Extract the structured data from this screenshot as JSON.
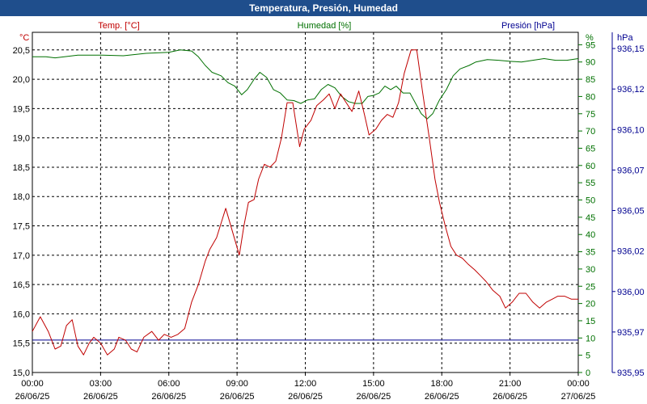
{
  "window": {
    "title": "Temperatura, Presión, Humedad"
  },
  "chart_data": {
    "type": "line",
    "title": "Temperatura, Presión, Humedad",
    "x_tick_labels": [
      [
        "00:00",
        "26/06/25"
      ],
      [
        "03:00",
        "26/06/25"
      ],
      [
        "06:00",
        "26/06/25"
      ],
      [
        "09:00",
        "26/06/25"
      ],
      [
        "12:00",
        "26/06/25"
      ],
      [
        "15:00",
        "26/06/25"
      ],
      [
        "18:00",
        "26/06/25"
      ],
      [
        "21:00",
        "26/06/25"
      ],
      [
        "00:00",
        "27/06/25"
      ]
    ],
    "x_range_hours": [
      0,
      24
    ],
    "grid": true,
    "axes": {
      "temp": {
        "label": "Temp. [°C]",
        "unit": "°C",
        "color": "#c00000",
        "side": "left",
        "range": [
          15.0,
          20.8
        ],
        "ticks": [
          "15,0",
          "15,5",
          "16,0",
          "16,5",
          "17,0",
          "17,5",
          "18,0",
          "18,5",
          "19,0",
          "19,5",
          "20,0",
          "20,5"
        ],
        "tick_values": [
          15.0,
          15.5,
          16.0,
          16.5,
          17.0,
          17.5,
          18.0,
          18.5,
          19.0,
          19.5,
          20.0,
          20.5
        ]
      },
      "hum": {
        "label": "Humedad [%]",
        "unit": "%",
        "color": "#007000",
        "side": "right",
        "range": [
          0,
          98.6
        ],
        "ticks": [
          "0",
          "5",
          "10",
          "15",
          "20",
          "25",
          "30",
          "35",
          "40",
          "45",
          "50",
          "55",
          "60",
          "65",
          "70",
          "75",
          "80",
          "85",
          "90",
          "95"
        ],
        "tick_values": [
          0,
          5,
          10,
          15,
          20,
          25,
          30,
          35,
          40,
          45,
          50,
          55,
          60,
          65,
          70,
          75,
          80,
          85,
          90,
          95
        ]
      },
      "pres": {
        "label": "Presión [hPa]",
        "unit": "hPa",
        "color": "#000090",
        "side": "far-right",
        "range": [
          935.95,
          936.16
        ],
        "ticks": [
          "935,95",
          "935,97",
          "936,00",
          "936,02",
          "936,05",
          "936,07",
          "936,10",
          "936,12",
          "936,15"
        ],
        "tick_values": [
          935.95,
          935.975,
          936.0,
          936.025,
          936.05,
          936.075,
          936.1,
          936.125,
          936.15
        ]
      }
    },
    "series": [
      {
        "name": "Temp. [°C]",
        "axis": "temp",
        "color": "#c00000",
        "x": [
          0,
          0.35,
          0.7,
          1.0,
          1.25,
          1.5,
          1.75,
          2.0,
          2.25,
          2.5,
          2.7,
          3.0,
          3.3,
          3.6,
          3.8,
          4.1,
          4.35,
          4.6,
          4.9,
          5.25,
          5.55,
          5.8,
          6.1,
          6.4,
          6.7,
          7.0,
          7.3,
          7.6,
          7.8,
          8.1,
          8.5,
          8.8,
          9.1,
          9.3,
          9.5,
          9.75,
          9.95,
          10.2,
          10.45,
          10.7,
          10.95,
          11.2,
          11.45,
          11.75,
          11.95,
          12.25,
          12.5,
          12.8,
          13.05,
          13.3,
          13.55,
          13.8,
          14.05,
          14.35,
          14.6,
          14.8,
          15.1,
          15.35,
          15.6,
          15.85,
          16.1,
          16.35,
          16.65,
          16.9,
          17.15,
          17.45,
          17.7,
          17.9,
          18.15,
          18.4,
          18.65,
          18.9,
          19.15,
          19.45,
          19.7,
          19.95,
          20.25,
          20.55,
          20.8,
          21.1,
          21.4,
          21.7,
          22.0,
          22.3,
          22.6,
          22.85,
          23.1,
          23.4,
          23.7,
          24.0
        ],
        "y": [
          15.7,
          15.95,
          15.7,
          15.4,
          15.45,
          15.8,
          15.9,
          15.45,
          15.3,
          15.5,
          15.6,
          15.5,
          15.3,
          15.4,
          15.6,
          15.55,
          15.4,
          15.35,
          15.6,
          15.7,
          15.55,
          15.65,
          15.6,
          15.65,
          15.75,
          16.2,
          16.5,
          16.9,
          17.1,
          17.3,
          17.8,
          17.4,
          17.0,
          17.5,
          17.9,
          17.95,
          18.3,
          18.55,
          18.5,
          18.6,
          19.0,
          19.6,
          19.6,
          18.85,
          19.15,
          19.3,
          19.55,
          19.65,
          19.75,
          19.5,
          19.75,
          19.6,
          19.45,
          19.8,
          19.4,
          19.05,
          19.15,
          19.3,
          19.4,
          19.35,
          19.6,
          20.1,
          20.5,
          20.5,
          19.8,
          19.0,
          18.3,
          17.9,
          17.5,
          17.15,
          17.0,
          16.95,
          16.85,
          16.75,
          16.65,
          16.55,
          16.4,
          16.3,
          16.1,
          16.2,
          16.35,
          16.35,
          16.2,
          16.1,
          16.2,
          16.25,
          16.3,
          16.3,
          16.25,
          16.25
        ]
      },
      {
        "name": "Humedad [%]",
        "axis": "hum",
        "color": "#007000",
        "x": [
          0,
          0.6,
          1.0,
          2.0,
          3.0,
          4.0,
          5.0,
          6.0,
          6.5,
          7.0,
          7.3,
          7.6,
          7.9,
          8.3,
          8.6,
          8.9,
          9.2,
          9.45,
          9.75,
          10.0,
          10.3,
          10.6,
          10.9,
          11.2,
          11.5,
          11.8,
          12.1,
          12.4,
          12.7,
          13.0,
          13.3,
          13.6,
          13.9,
          14.2,
          14.5,
          14.75,
          15.0,
          15.25,
          15.5,
          15.75,
          16.0,
          16.3,
          16.6,
          16.85,
          17.1,
          17.35,
          17.6,
          17.9,
          18.2,
          18.5,
          18.8,
          19.2,
          19.5,
          20.0,
          20.5,
          21.0,
          21.5,
          22.0,
          22.5,
          23.0,
          23.5,
          24.0
        ],
        "y": [
          91.5,
          91.5,
          91.2,
          92.0,
          92.0,
          91.8,
          92.5,
          92.8,
          93.5,
          93.2,
          91.5,
          89.0,
          87.0,
          86.0,
          84.0,
          83.0,
          80.5,
          82.0,
          85.0,
          87.0,
          85.5,
          82.0,
          81.0,
          79.0,
          78.8,
          78.0,
          79.0,
          79.3,
          82.0,
          83.5,
          82.5,
          80.0,
          78.5,
          78.0,
          78.0,
          80.0,
          80.3,
          81.0,
          83.0,
          82.0,
          83.0,
          81.0,
          81.0,
          78.0,
          75.0,
          73.5,
          75.0,
          79.0,
          82.0,
          86.0,
          88.0,
          89.0,
          90.0,
          90.7,
          90.5,
          90.2,
          90.0,
          90.5,
          91.0,
          90.5,
          90.5,
          91.0
        ]
      },
      {
        "name": "Presión [hPa]",
        "axis": "pres",
        "color": "#000090",
        "x": [
          0,
          24
        ],
        "y": [
          935.97,
          935.97
        ]
      }
    ]
  }
}
